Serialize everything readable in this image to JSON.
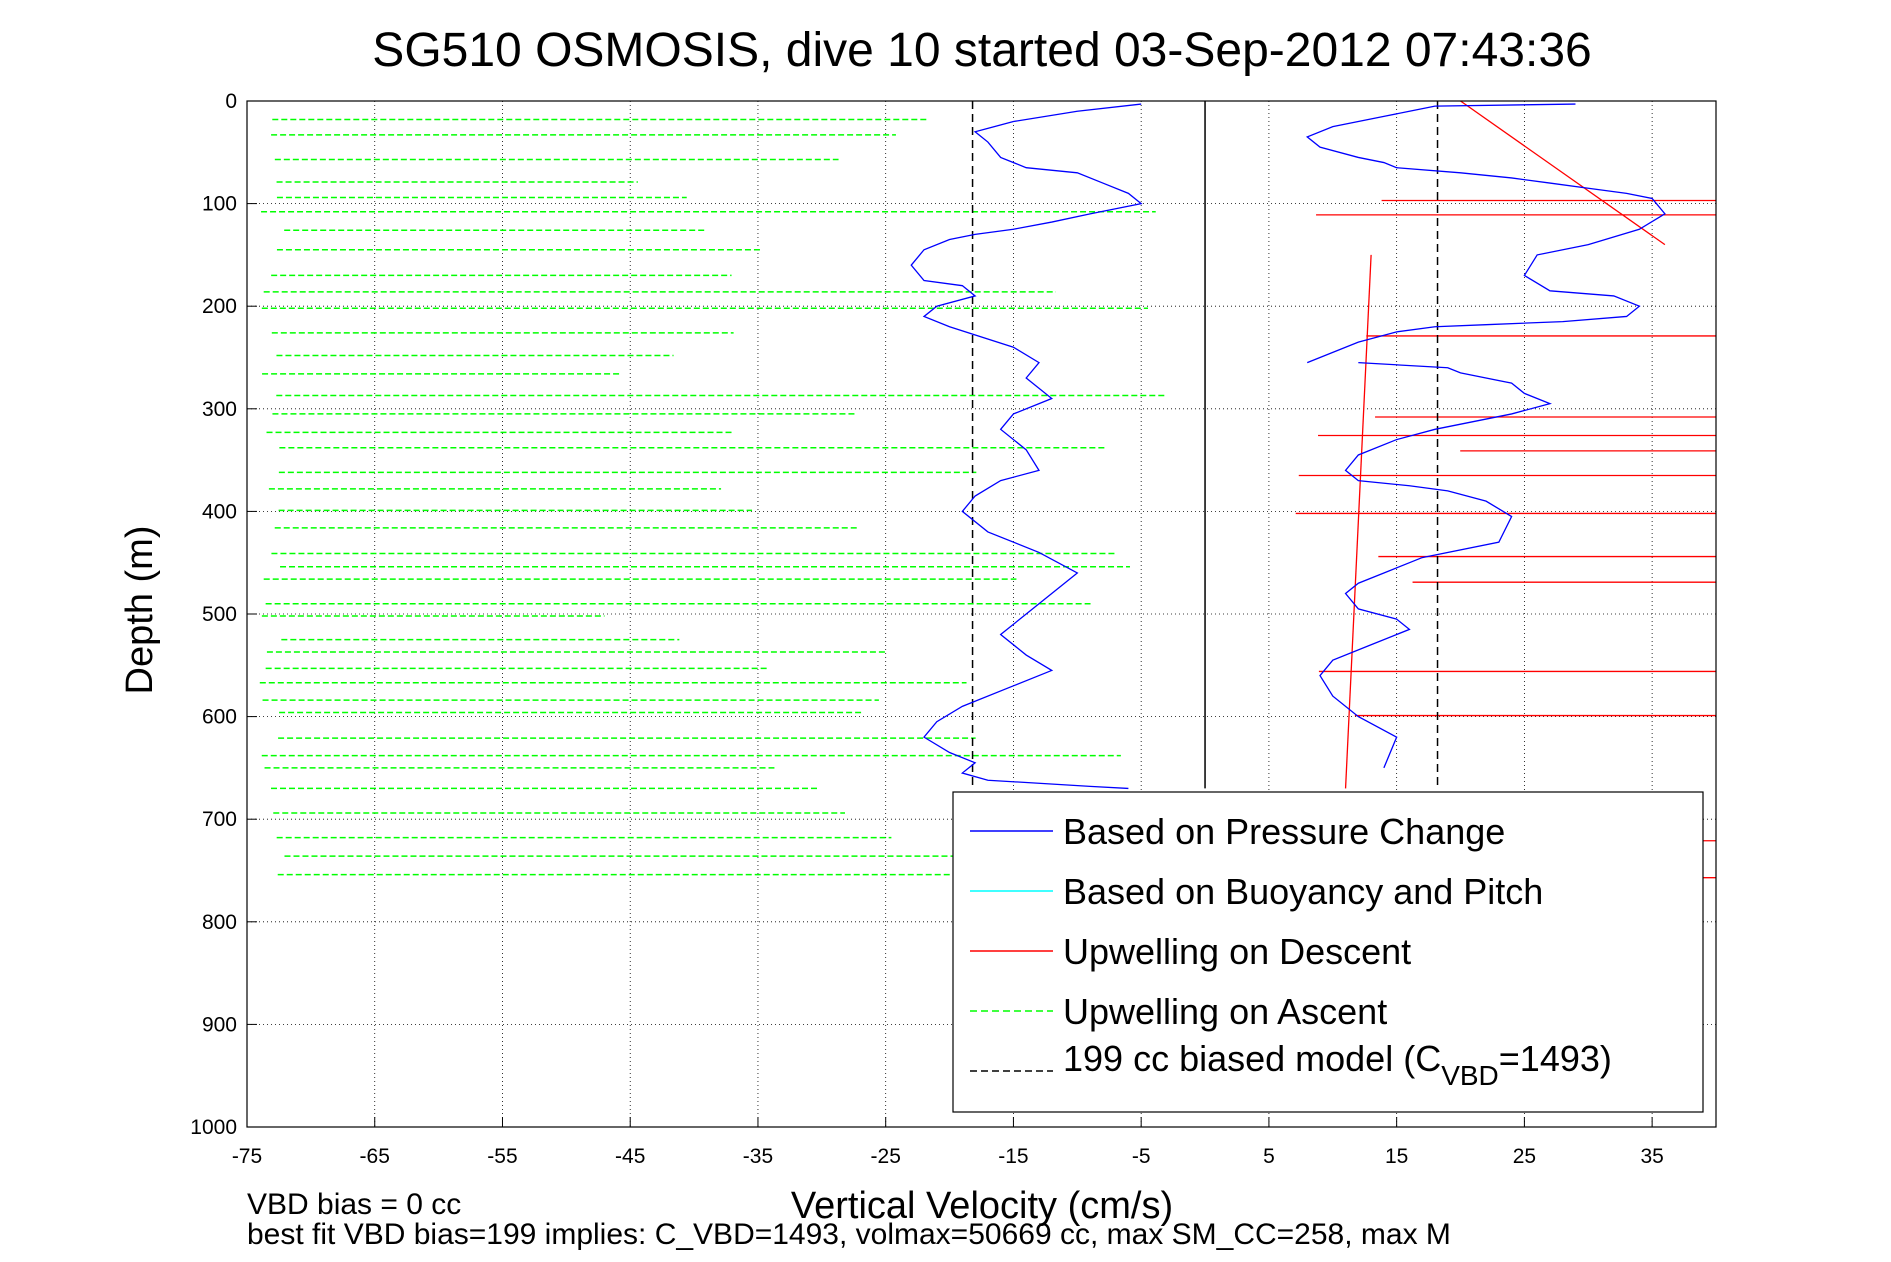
{
  "chart_data": {
    "type": "line",
    "title": "SG510 OSMOSIS, dive 10 started 03-Sep-2012 07:43:36",
    "xlabel": "Vertical Velocity (cm/s)",
    "ylabel": "Depth (m)",
    "xlim": [
      -75,
      40
    ],
    "ylim": [
      0,
      1000
    ],
    "y_reversed": true,
    "grid": true,
    "xticks": [
      "-75",
      "-65",
      "-55",
      "-45",
      "-35",
      "-25",
      "-15",
      "-5",
      "5",
      "15",
      "25",
      "35"
    ],
    "xtick_values": [
      -75,
      -65,
      -55,
      -45,
      -35,
      -25,
      -15,
      -5,
      5,
      15,
      25,
      35
    ],
    "yticks": [
      "0",
      "100",
      "200",
      "300",
      "400",
      "500",
      "600",
      "700",
      "800",
      "900",
      "1000"
    ],
    "ytick_values": [
      0,
      100,
      200,
      300,
      400,
      500,
      600,
      700,
      800,
      900,
      1000
    ],
    "vertical_lines": [
      {
        "x": 0,
        "style": "solid",
        "color": "#000000",
        "ymax": 670
      },
      {
        "x": -18.2,
        "style": "dashed",
        "color": "#000000",
        "ymax": 670
      },
      {
        "x": 18.2,
        "style": "dashed",
        "color": "#000000",
        "ymax": 670
      }
    ],
    "legend_placement": "bottom-right",
    "legend": [
      {
        "label": "Based on Pressure Change",
        "color": "#0000ff",
        "style": "solid"
      },
      {
        "label": "Based on Buoyancy and Pitch",
        "color": "#00ffff",
        "style": "solid"
      },
      {
        "label": "Upwelling on Descent",
        "color": "#ff0000",
        "style": "solid"
      },
      {
        "label": "Upwelling on Ascent",
        "color": "#00ff00",
        "style": "dashed"
      },
      {
        "label_main": "199 cc biased model (C",
        "label_sub": "VBD",
        "label_tail": "=1493)",
        "color": "#000000",
        "style": "dashed"
      }
    ],
    "series": [
      {
        "color": "#0000ff",
        "x": [
          29,
          18,
          16,
          14,
          10,
          8,
          9,
          12,
          14,
          15,
          20,
          24,
          27,
          30,
          33,
          35,
          36,
          34,
          30,
          26,
          25,
          27,
          32,
          34,
          33,
          28,
          22,
          18,
          15,
          12,
          10,
          8
        ],
        "y": [
          3,
          5,
          10,
          15,
          25,
          35,
          45,
          55,
          60,
          65,
          70,
          75,
          80,
          85,
          90,
          95,
          110,
          125,
          140,
          150,
          170,
          185,
          190,
          200,
          210,
          215,
          218,
          220,
          225,
          235,
          245,
          255
        ]
      },
      {
        "color": "#0000ff",
        "x": [
          12,
          19,
          20,
          24,
          25,
          27,
          24,
          18,
          15,
          12,
          11,
          12,
          16,
          19,
          22,
          24,
          23,
          17,
          14,
          12,
          11,
          12,
          15,
          16,
          13,
          10,
          9,
          10,
          12,
          15,
          14
        ],
        "y": [
          255,
          260,
          265,
          275,
          285,
          295,
          305,
          320,
          330,
          345,
          360,
          370,
          375,
          380,
          390,
          405,
          430,
          445,
          460,
          470,
          480,
          495,
          505,
          515,
          530,
          545,
          560,
          580,
          600,
          620,
          650
        ]
      },
      {
        "color": "#0000ff",
        "x": [
          -5,
          -10,
          -15,
          -18,
          -17,
          -16,
          -14,
          -10,
          -8,
          -6,
          -5,
          -9,
          -12,
          -15,
          -18,
          -20,
          -22,
          -23,
          -22,
          -19,
          -18,
          -21,
          -22,
          -20,
          -15,
          -13,
          -14,
          -12,
          -15,
          -16,
          -14,
          -13,
          -16,
          -18,
          -19,
          -17,
          -13,
          -10,
          -12,
          -14,
          -16,
          -14,
          -12,
          -15,
          -19,
          -21,
          -22,
          -20,
          -18,
          -19,
          -17,
          -9,
          -6
        ],
        "y": [
          3,
          10,
          20,
          30,
          40,
          55,
          65,
          70,
          80,
          90,
          100,
          110,
          118,
          125,
          130,
          135,
          145,
          160,
          175,
          180,
          190,
          200,
          210,
          220,
          240,
          255,
          270,
          290,
          305,
          320,
          340,
          360,
          370,
          385,
          400,
          420,
          440,
          460,
          480,
          500,
          520,
          540,
          555,
          570,
          590,
          605,
          620,
          635,
          645,
          655,
          662,
          668,
          670
        ]
      }
    ]
  },
  "notes": {
    "line1": "VBD bias = 0 cc",
    "line2": "best fit VBD bias=199 implies: C_VBD=1493, volmax=50669 cc, max SM_CC=258, max M"
  }
}
